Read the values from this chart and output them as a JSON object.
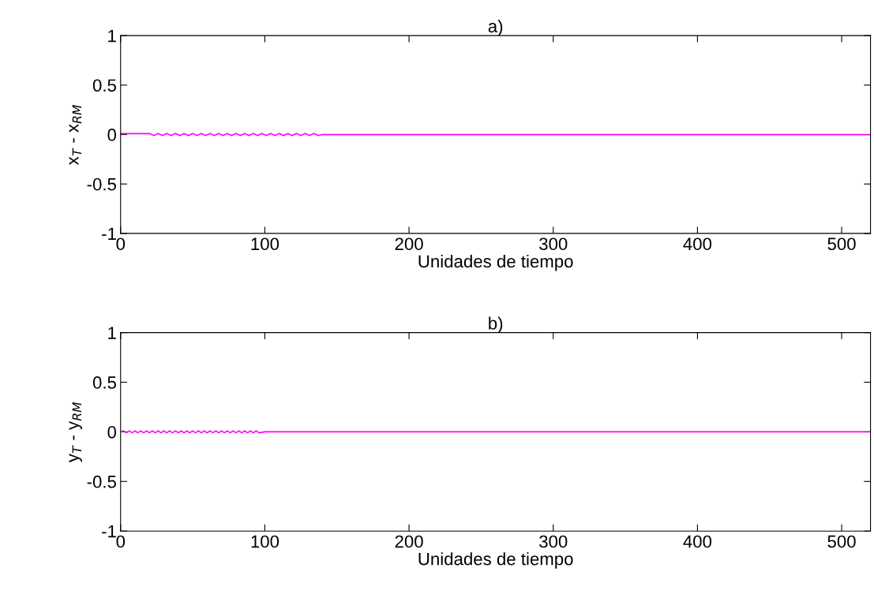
{
  "chart_data": [
    {
      "type": "line",
      "title": "a)",
      "xlabel": "Unidades de tiempo",
      "ylabel": "x$_{T}$ - x$_{RM}$",
      "xlim": [
        0,
        520
      ],
      "ylim": [
        -1,
        1
      ],
      "xticks": [
        0,
        100,
        200,
        300,
        400,
        500
      ],
      "yticks": [
        -1,
        -0.5,
        0,
        0.5,
        1
      ],
      "grid": false,
      "legend": false,
      "marker": "none",
      "line_style": "solid",
      "series": [
        {
          "color": "#ff00ff",
          "x": [
            0,
            5,
            10,
            15,
            20,
            23,
            26,
            29,
            32,
            35,
            38,
            41,
            44,
            47,
            50,
            53,
            56,
            59,
            62,
            65,
            68,
            71,
            74,
            77,
            80,
            83,
            86,
            89,
            92,
            95,
            98,
            101,
            104,
            107,
            110,
            113,
            116,
            119,
            122,
            125,
            128,
            131,
            134,
            137,
            140,
            160,
            200,
            300,
            400,
            450,
            520
          ],
          "values": [
            0.01,
            0.01,
            0.01,
            0.01,
            0.01,
            -0.01,
            0.01,
            -0.01,
            0.01,
            -0.01,
            0.01,
            -0.01,
            0.01,
            -0.01,
            0.01,
            -0.01,
            0.01,
            -0.01,
            0.01,
            -0.01,
            0.01,
            -0.01,
            0.01,
            -0.01,
            0.01,
            -0.01,
            0.01,
            -0.01,
            0.01,
            -0.01,
            0.01,
            -0.01,
            0.01,
            -0.01,
            0.01,
            -0.01,
            0.01,
            -0.01,
            0.01,
            -0.01,
            0.01,
            -0.01,
            0.01,
            -0.01,
            0,
            0,
            0,
            0,
            0,
            0,
            0
          ]
        }
      ]
    },
    {
      "type": "line",
      "title": "b)",
      "xlabel": "Unidades de tiempo",
      "ylabel": "y$_{T}$ - y$_{RM}$",
      "xlim": [
        0,
        520
      ],
      "ylim": [
        -1,
        1
      ],
      "xticks": [
        0,
        100,
        200,
        300,
        400,
        500
      ],
      "yticks": [
        -1,
        -0.5,
        0,
        0.5,
        1
      ],
      "grid": false,
      "legend": false,
      "marker": "none",
      "line_style": "solid",
      "series": [
        {
          "color": "#ff00ff",
          "x": [
            0,
            2,
            4,
            6,
            8,
            10,
            12,
            14,
            16,
            18,
            20,
            22,
            24,
            26,
            28,
            30,
            32,
            34,
            36,
            38,
            40,
            42,
            44,
            46,
            48,
            50,
            52,
            54,
            56,
            58,
            60,
            62,
            64,
            66,
            68,
            70,
            72,
            74,
            76,
            78,
            80,
            82,
            84,
            86,
            88,
            90,
            92,
            94,
            96,
            100,
            150,
            200,
            300,
            400,
            520
          ],
          "values": [
            0,
            0.01,
            -0.01,
            0.01,
            -0.01,
            0.01,
            -0.01,
            0.01,
            -0.01,
            0.01,
            -0.01,
            0.01,
            -0.01,
            0.01,
            -0.01,
            0.01,
            -0.01,
            0.01,
            -0.01,
            0.01,
            -0.01,
            0.01,
            -0.01,
            0.01,
            -0.01,
            0.01,
            -0.01,
            0.01,
            -0.01,
            0.01,
            -0.01,
            0.01,
            -0.01,
            0.01,
            -0.01,
            0.01,
            -0.01,
            0.01,
            -0.01,
            0.01,
            -0.01,
            0.01,
            -0.01,
            0.01,
            -0.01,
            0.01,
            -0.01,
            0.01,
            -0.01,
            0,
            0,
            0,
            0,
            0,
            0
          ]
        }
      ]
    }
  ]
}
